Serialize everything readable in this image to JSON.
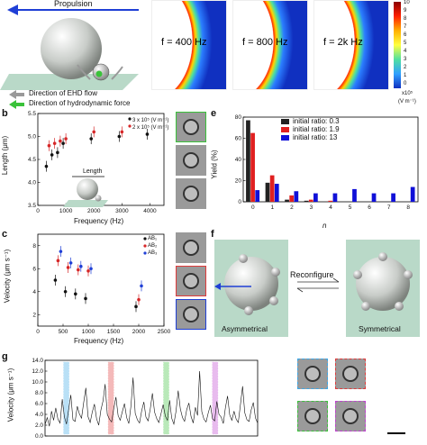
{
  "panel_a": {
    "propulsion": "Propulsion",
    "legend_ehd": "Direction of EHD flow",
    "legend_hydro": "Direction of hydrodynamic force",
    "field_labels": [
      "f = 400 Hz",
      "f = 800 Hz",
      "f = 2k Hz"
    ],
    "colorbar_ticks": [
      "10",
      "9",
      "8",
      "7",
      "6",
      "5",
      "4",
      "3",
      "2",
      "1",
      "0"
    ],
    "colorbar_unit": "x10⁵",
    "colorbar_unit2": "(V m⁻¹)"
  },
  "panel_b": {
    "letter": "b",
    "annotation": "Length",
    "chart_data": {
      "type": "scatter",
      "xlabel": "Frequency (Hz)",
      "ylabel": "Length (μm)",
      "xlim": [
        0,
        4500
      ],
      "ylim": [
        3.5,
        5.5
      ],
      "xticks": [
        "0",
        "1000",
        "2000",
        "3000",
        "4000"
      ],
      "yticks": [
        "3.5",
        "4.0",
        "4.5",
        "5.0",
        "5.5"
      ],
      "legend": [
        "3 x 10⁵ (V m⁻¹)",
        "2 x 10⁵ (V m⁻¹)"
      ],
      "series": [
        {
          "name": "3 x 10⁵ (V m⁻¹)",
          "color": "#111111",
          "x": [
            400,
            600,
            800,
            1000,
            2000,
            3000,
            4000
          ],
          "y": [
            4.35,
            4.6,
            4.65,
            4.85,
            4.95,
            5.0,
            5.05
          ]
        },
        {
          "name": "2 x 10⁵ (V m⁻¹)",
          "color": "#d62728",
          "x": [
            400,
            600,
            800,
            1000,
            2000,
            3000
          ],
          "y": [
            4.8,
            4.85,
            4.9,
            4.95,
            5.1,
            5.1
          ]
        }
      ]
    }
  },
  "panel_c": {
    "letter": "c",
    "chart_data": {
      "type": "scatter",
      "xlabel": "Frequency (Hz)",
      "ylabel": "Velocity (μm s⁻¹)",
      "xlim": [
        0,
        2500
      ],
      "ylim": [
        1,
        9
      ],
      "xticks": [
        "0",
        "500",
        "1000",
        "1500",
        "2000",
        "2500"
      ],
      "yticks": [
        "2",
        "4",
        "6",
        "8"
      ],
      "legend": [
        "AB₁",
        "AB₂",
        "AB₃"
      ],
      "series": [
        {
          "name": "AB₁",
          "color": "#111111",
          "x": [
            400,
            600,
            800,
            1000,
            2000
          ],
          "y": [
            5.0,
            4.0,
            3.8,
            3.4,
            2.7
          ]
        },
        {
          "name": "AB₂",
          "color": "#d62728",
          "x": [
            400,
            600,
            800,
            1000,
            2000
          ],
          "y": [
            6.7,
            6.1,
            5.9,
            5.8,
            3.3
          ]
        },
        {
          "name": "AB₃",
          "color": "#1f3fd6",
          "x": [
            400,
            600,
            800,
            1000,
            2000
          ],
          "y": [
            7.5,
            6.5,
            6.2,
            6.0,
            4.5
          ]
        }
      ]
    }
  },
  "panel_e": {
    "letter": "e",
    "chart_data": {
      "type": "bar",
      "xlabel": "n",
      "ylabel": "Yield (%)",
      "ylim": [
        0,
        80
      ],
      "yticks": [
        "0",
        "20",
        "40",
        "60",
        "80"
      ],
      "categories": [
        "0",
        "1",
        "2",
        "3",
        "4",
        "5",
        "6",
        "7",
        "8"
      ],
      "legend": [
        "initial ratio: 0.3",
        "initial ratio: 1.9",
        "initial ratio: 13"
      ],
      "series": [
        {
          "name": "initial ratio: 0.3",
          "color": "#222222",
          "values": [
            77,
            18,
            2,
            1,
            0,
            0,
            0,
            0,
            0
          ]
        },
        {
          "name": "initial ratio: 1.9",
          "color": "#e02020",
          "values": [
            65,
            25,
            6,
            2,
            1,
            0,
            0,
            0,
            0
          ]
        },
        {
          "name": "initial ratio: 13",
          "color": "#1010d8",
          "values": [
            11,
            17,
            10,
            8,
            8,
            12,
            8,
            8,
            14
          ]
        }
      ]
    }
  },
  "panel_f": {
    "letter": "f",
    "reconfigure": "Reconfigure",
    "left_label": "Asymmetrical",
    "right_label": "Symmetrical"
  },
  "panel_g": {
    "letter": "g",
    "chart_data": {
      "type": "line",
      "ylabel": "Velocity (μm s⁻¹)",
      "ylim": [
        0,
        14
      ],
      "yticks": [
        "0.0",
        "2.0",
        "4.0",
        "6.0",
        "8.0",
        "10.0",
        "12.0",
        "14.0"
      ],
      "highlight_colors": [
        "#3aa7e8",
        "#e03a3a",
        "#3ac23a",
        "#c040d0"
      ],
      "highlight_positions": [
        0.1,
        0.31,
        0.57,
        0.8
      ],
      "series": [
        {
          "color": "#111111",
          "values": [
            2.1,
            3.4,
            1.8,
            4.6,
            2.9,
            5.2,
            3.1,
            2.4,
            6.8,
            3.5,
            2.2,
            4.9,
            7.6,
            3.0,
            2.7,
            5.5,
            4.1,
            3.3,
            6.2,
            8.9,
            3.6,
            2.5,
            4.4,
            5.9,
            3.2,
            2.0,
            4.8,
            6.5,
            9.6,
            4.0,
            3.1,
            2.6,
            5.1,
            7.2,
            3.8,
            2.9,
            4.5,
            6.0,
            3.4,
            2.3,
            5.6,
            10.8,
            4.2,
            3.0,
            2.4,
            4.7,
            6.3,
            3.5,
            2.8,
            5.0,
            7.9,
            4.4,
            3.2,
            2.5,
            4.1,
            5.8,
            3.7,
            2.9,
            6.6,
            3.3,
            2.2,
            4.6,
            8.4,
            5.0,
            3.4,
            2.7,
            4.9,
            6.1,
            3.6,
            2.4,
            5.3,
            3.8,
            12.0,
            4.5,
            3.1,
            2.6,
            4.3,
            5.7,
            3.2,
            2.8,
            6.4,
            4.0,
            3.5,
            2.3,
            5.2,
            7.4,
            3.9,
            2.9,
            4.6,
            3.1,
            2.5,
            5.8,
            9.2,
            4.3,
            3.0,
            2.7,
            4.8,
            6.2,
            3.3,
            2.4
          ]
        }
      ]
    }
  }
}
